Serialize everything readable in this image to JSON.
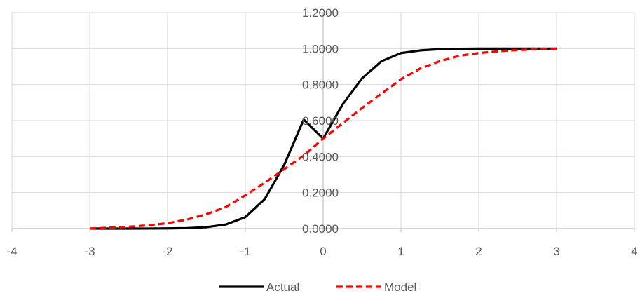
{
  "chart_data": {
    "type": "line",
    "xlim": [
      -4,
      4
    ],
    "ylim": [
      0,
      1.2
    ],
    "x_ticks": [
      "-4",
      "-3",
      "-2",
      "-1",
      "0",
      "1",
      "2",
      "3",
      "4"
    ],
    "y_ticks": [
      "0.0000",
      "0.2000",
      "0.4000",
      "0.6000",
      "0.8000",
      "1.0000",
      "1.2000"
    ],
    "grid": true,
    "legend_position": "bottom",
    "x": [
      -3.0,
      -2.75,
      -2.5,
      -2.25,
      -2.0,
      -1.75,
      -1.5,
      -1.25,
      -1.0,
      -0.75,
      -0.5,
      -0.25,
      0.0,
      0.25,
      0.5,
      0.75,
      1.0,
      1.25,
      1.5,
      1.75,
      2.0,
      2.25,
      2.5,
      2.75,
      3.0
    ],
    "series": [
      {
        "name": "Actual",
        "color": "#000000",
        "style": "solid",
        "values": [
          0.0,
          0.0,
          0.0001,
          0.0003,
          0.0009,
          0.0027,
          0.0079,
          0.0228,
          0.0635,
          0.1643,
          0.3543,
          0.6058,
          0.5,
          0.69,
          0.835,
          0.93,
          0.975,
          0.99,
          0.997,
          0.999,
          0.9997,
          0.9999,
          1.0,
          1.0,
          1.0
        ]
      },
      {
        "name": "Model",
        "color": "#ff0000",
        "style": "dashed",
        "values": [
          0.0,
          0.005,
          0.01,
          0.018,
          0.03,
          0.05,
          0.08,
          0.12,
          0.185,
          0.255,
          0.33,
          0.405,
          0.5,
          0.585,
          0.67,
          0.75,
          0.83,
          0.89,
          0.93,
          0.96,
          0.975,
          0.985,
          0.992,
          0.996,
          0.999
        ]
      }
    ]
  }
}
